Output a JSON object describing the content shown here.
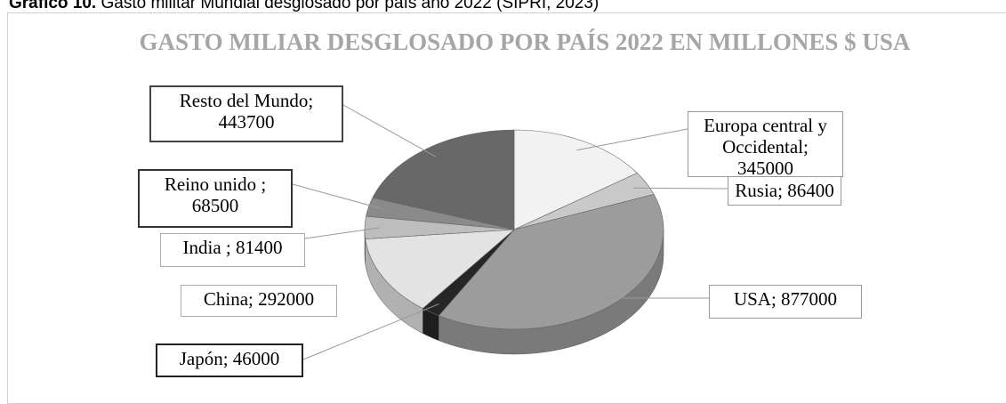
{
  "caption": {
    "label": "Gráfico 10.",
    "text": "Gasto militar Mundial desglosado por país año 2022 (SIPRI, 2023)"
  },
  "chart_data": {
    "type": "pie",
    "title": "GASTO MILIAR DESGLOSADO POR PAÍS 2022 EN MILLONES $ USA",
    "categories": [
      "Europa central y Occidental;",
      "Rusia;",
      "USA;",
      "Japón;",
      "China;",
      "India ;",
      "Reino unido ;",
      "Resto del Mundo;"
    ],
    "values": [
      345000,
      86400,
      877000,
      46000,
      292000,
      81400,
      68500,
      443700
    ],
    "colors": [
      "#f2f2f2",
      "#c9c9c9",
      "#9c9c9c",
      "#262626",
      "#e3e3e3",
      "#bdbdbd",
      "#8a8a8a",
      "#686868"
    ]
  }
}
